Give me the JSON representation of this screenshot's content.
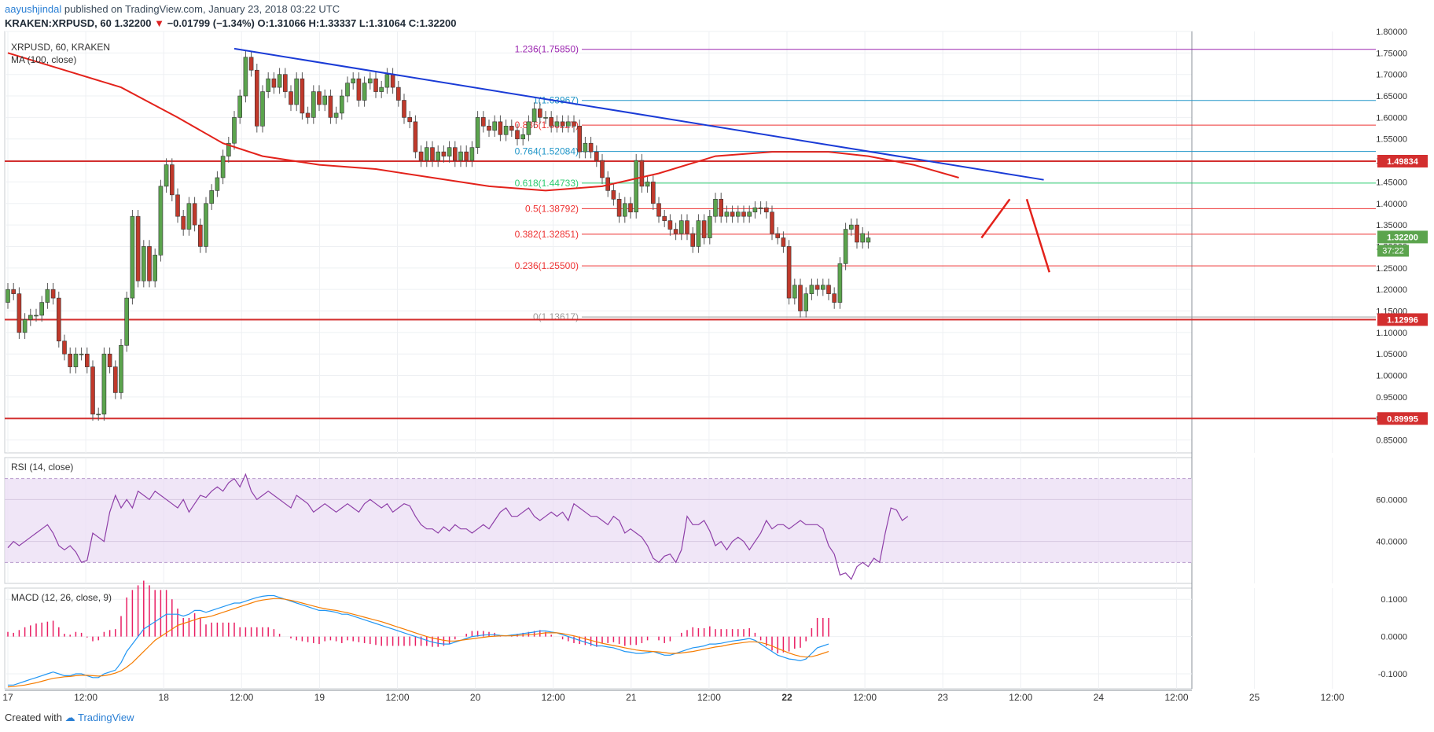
{
  "header": {
    "user": "aayushjindal",
    "published": " published on TradingView.com, January 23, 2018 03:22 UTC",
    "symbol": "KRAKEN:XRPUSD, 60",
    "last": "1.32200",
    "change": "−0.01799 (−1.34%)",
    "ohlc": "O:1.31066  H:1.33337  L:1.31064  C:1.32200"
  },
  "legend": {
    "symbol": "XRPUSD, 60, KRAKEN",
    "ma": "MA (100, close)",
    "rsi": "RSI (14, close)",
    "macd": "MACD (12, 26, close, 9)"
  },
  "footer": {
    "created_with": "Created with",
    "brand": "TradingView"
  },
  "colors": {
    "up": "#5ba44d",
    "down": "#c0392b",
    "ma": "#e3221b",
    "trend": "#1a3bd6",
    "level": "#d32f2f",
    "rsi": "#8e3fa8",
    "rsi_band": "#eadcf4",
    "macd": "#2196f3",
    "signal": "#f57c00",
    "hist": "#e91e63"
  },
  "chart_data": {
    "type": "candlestick",
    "title": "XRPUSD, 60, KRAKEN",
    "ylim": [
      0.82,
      1.8
    ],
    "y_ticks": [
      "1.80000",
      "1.75000",
      "1.70000",
      "1.65000",
      "1.60000",
      "1.55000",
      "1.50000",
      "1.45000",
      "1.40000",
      "1.35000",
      "1.30000",
      "1.25000",
      "1.20000",
      "1.15000",
      "1.10000",
      "1.05000",
      "1.00000",
      "0.95000",
      "0.90000",
      "0.85000"
    ],
    "x_ticks": [
      "17",
      "12:00",
      "18",
      "12:00",
      "19",
      "12:00",
      "20",
      "12:00",
      "21",
      "12:00",
      "22",
      "12:00",
      "23",
      "12:00",
      "24",
      "12:00",
      "25",
      "12:00"
    ],
    "x_tick_bold": [
      false,
      false,
      false,
      false,
      false,
      false,
      false,
      false,
      false,
      false,
      true,
      false,
      false,
      false,
      false,
      false,
      false,
      false
    ],
    "candles": [
      [
        1.17,
        1.2
      ],
      [
        1.2,
        1.19
      ],
      [
        1.19,
        1.1
      ],
      [
        1.1,
        1.13
      ],
      [
        1.13,
        1.14
      ],
      [
        1.14,
        1.14
      ],
      [
        1.14,
        1.17
      ],
      [
        1.17,
        1.2
      ],
      [
        1.2,
        1.18
      ],
      [
        1.18,
        1.08
      ],
      [
        1.08,
        1.05
      ],
      [
        1.05,
        1.02
      ],
      [
        1.02,
        1.05
      ],
      [
        1.05,
        1.05
      ],
      [
        1.05,
        1.02
      ],
      [
        1.02,
        0.91
      ],
      [
        0.91,
        0.91
      ],
      [
        0.91,
        1.05
      ],
      [
        1.05,
        1.02
      ],
      [
        1.02,
        0.96
      ],
      [
        0.96,
        1.07
      ],
      [
        1.07,
        1.18
      ],
      [
        1.18,
        1.37
      ],
      [
        1.37,
        1.22
      ],
      [
        1.22,
        1.3
      ],
      [
        1.3,
        1.22
      ],
      [
        1.22,
        1.28
      ],
      [
        1.28,
        1.44
      ],
      [
        1.44,
        1.49
      ],
      [
        1.49,
        1.42
      ],
      [
        1.42,
        1.37
      ],
      [
        1.37,
        1.34
      ],
      [
        1.34,
        1.4
      ],
      [
        1.4,
        1.35
      ],
      [
        1.35,
        1.3
      ],
      [
        1.3,
        1.4
      ],
      [
        1.4,
        1.43
      ],
      [
        1.43,
        1.46
      ],
      [
        1.46,
        1.51
      ],
      [
        1.51,
        1.54
      ],
      [
        1.54,
        1.6
      ],
      [
        1.6,
        1.65
      ],
      [
        1.65,
        1.74
      ],
      [
        1.74,
        1.71
      ],
      [
        1.71,
        1.58
      ],
      [
        1.58,
        1.66
      ],
      [
        1.66,
        1.69
      ],
      [
        1.69,
        1.67
      ],
      [
        1.67,
        1.7
      ],
      [
        1.7,
        1.66
      ],
      [
        1.66,
        1.63
      ],
      [
        1.63,
        1.69
      ],
      [
        1.69,
        1.61
      ],
      [
        1.61,
        1.6
      ],
      [
        1.6,
        1.66
      ],
      [
        1.66,
        1.63
      ],
      [
        1.63,
        1.65
      ],
      [
        1.65,
        1.6
      ],
      [
        1.6,
        1.61
      ],
      [
        1.61,
        1.65
      ],
      [
        1.65,
        1.68
      ],
      [
        1.68,
        1.69
      ],
      [
        1.69,
        1.64
      ],
      [
        1.64,
        1.68
      ],
      [
        1.68,
        1.69
      ],
      [
        1.69,
        1.66
      ],
      [
        1.66,
        1.67
      ],
      [
        1.67,
        1.7
      ],
      [
        1.7,
        1.67
      ],
      [
        1.67,
        1.64
      ],
      [
        1.64,
        1.6
      ],
      [
        1.6,
        1.59
      ],
      [
        1.59,
        1.52
      ],
      [
        1.52,
        1.5
      ],
      [
        1.5,
        1.53
      ],
      [
        1.53,
        1.5
      ],
      [
        1.5,
        1.52
      ],
      [
        1.52,
        1.51
      ],
      [
        1.51,
        1.53
      ],
      [
        1.53,
        1.5
      ],
      [
        1.5,
        1.52
      ],
      [
        1.52,
        1.5
      ],
      [
        1.5,
        1.53
      ],
      [
        1.53,
        1.6
      ],
      [
        1.6,
        1.58
      ],
      [
        1.58,
        1.57
      ],
      [
        1.57,
        1.59
      ],
      [
        1.59,
        1.56
      ],
      [
        1.56,
        1.58
      ],
      [
        1.58,
        1.57
      ],
      [
        1.57,
        1.55
      ],
      [
        1.55,
        1.56
      ],
      [
        1.56,
        1.59
      ],
      [
        1.59,
        1.62
      ],
      [
        1.62,
        1.6
      ],
      [
        1.6,
        1.6
      ],
      [
        1.6,
        1.58
      ],
      [
        1.58,
        1.59
      ],
      [
        1.59,
        1.58
      ],
      [
        1.58,
        1.59
      ],
      [
        1.59,
        1.58
      ],
      [
        1.58,
        1.52
      ],
      [
        1.52,
        1.54
      ],
      [
        1.54,
        1.52
      ],
      [
        1.52,
        1.5
      ],
      [
        1.5,
        1.46
      ],
      [
        1.46,
        1.43
      ],
      [
        1.43,
        1.41
      ],
      [
        1.41,
        1.37
      ],
      [
        1.37,
        1.4
      ],
      [
        1.4,
        1.38
      ],
      [
        1.38,
        1.5
      ],
      [
        1.5,
        1.44
      ],
      [
        1.44,
        1.45
      ],
      [
        1.45,
        1.4
      ],
      [
        1.4,
        1.37
      ],
      [
        1.37,
        1.36
      ],
      [
        1.36,
        1.34
      ],
      [
        1.34,
        1.33
      ],
      [
        1.33,
        1.36
      ],
      [
        1.36,
        1.33
      ],
      [
        1.33,
        1.3
      ],
      [
        1.3,
        1.36
      ],
      [
        1.36,
        1.32
      ],
      [
        1.32,
        1.37
      ],
      [
        1.37,
        1.41
      ],
      [
        1.41,
        1.37
      ],
      [
        1.37,
        1.38
      ],
      [
        1.38,
        1.37
      ],
      [
        1.37,
        1.38
      ],
      [
        1.38,
        1.37
      ],
      [
        1.37,
        1.38
      ],
      [
        1.38,
        1.39
      ],
      [
        1.39,
        1.39
      ],
      [
        1.39,
        1.38
      ],
      [
        1.38,
        1.33
      ],
      [
        1.33,
        1.32
      ],
      [
        1.32,
        1.3
      ],
      [
        1.3,
        1.18
      ],
      [
        1.18,
        1.21
      ],
      [
        1.21,
        1.15
      ],
      [
        1.15,
        1.19
      ],
      [
        1.19,
        1.21
      ],
      [
        1.21,
        1.2
      ],
      [
        1.2,
        1.21
      ],
      [
        1.21,
        1.19
      ],
      [
        1.19,
        1.17
      ],
      [
        1.17,
        1.26
      ],
      [
        1.26,
        1.34
      ],
      [
        1.34,
        1.35
      ],
      [
        1.35,
        1.31
      ],
      [
        1.31,
        1.33
      ],
      [
        1.31,
        1.32
      ]
    ],
    "moving_average_100": [
      [
        0,
        1.75
      ],
      [
        10,
        1.71
      ],
      [
        20,
        1.67
      ],
      [
        30,
        1.6
      ],
      [
        38,
        1.54
      ],
      [
        45,
        1.51
      ],
      [
        55,
        1.49
      ],
      [
        65,
        1.48
      ],
      [
        75,
        1.46
      ],
      [
        85,
        1.44
      ],
      [
        95,
        1.43
      ],
      [
        105,
        1.44
      ],
      [
        115,
        1.47
      ],
      [
        125,
        1.51
      ],
      [
        135,
        1.52
      ],
      [
        145,
        1.52
      ],
      [
        152,
        1.51
      ],
      [
        160,
        1.49
      ],
      [
        168,
        1.46
      ]
    ],
    "horizontal_levels": [
      "1.49834",
      "1.12996",
      "0.89995"
    ],
    "fibonacci": [
      {
        "ratio": "1.236",
        "price": "1.75850"
      },
      {
        "ratio": "1",
        "price": "1.63967"
      },
      {
        "ratio": "0.886",
        "price": "1.58227"
      },
      {
        "ratio": "0.764",
        "price": "1.52084"
      },
      {
        "ratio": "0.618",
        "price": "1.44733"
      },
      {
        "ratio": "0.5",
        "price": "1.38792"
      },
      {
        "ratio": "0.382",
        "price": "1.32851"
      },
      {
        "ratio": "0.236",
        "price": "1.25500"
      },
      {
        "ratio": "0",
        "price": "1.13617"
      }
    ],
    "trendline": [
      [
        40,
        1.76
      ],
      [
        183,
        1.455
      ]
    ],
    "projection_arrows": [
      [
        [
          172,
          1.32
        ],
        [
          177,
          1.41
        ]
      ],
      [
        [
          180,
          1.41
        ],
        [
          184,
          1.24
        ]
      ]
    ],
    "price_badge": "1.32200",
    "countdown_badge": "37:22",
    "rsi": {
      "ylim": [
        20,
        80
      ],
      "ticks": [
        "60.0000",
        "40.0000"
      ],
      "values": [
        37,
        40,
        38,
        40,
        42,
        44,
        46,
        48,
        44,
        38,
        36,
        38,
        35,
        30,
        31,
        44,
        42,
        40,
        54,
        62,
        56,
        60,
        56,
        64,
        62,
        60,
        64,
        62,
        60,
        58,
        56,
        60,
        54,
        58,
        62,
        61,
        64,
        66,
        64,
        68,
        70,
        66,
        72,
        64,
        60,
        62,
        64,
        62,
        60,
        58,
        56,
        62,
        60,
        58,
        54,
        56,
        58,
        56,
        54,
        56,
        58,
        56,
        54,
        58,
        60,
        58,
        56,
        58,
        54,
        56,
        58,
        57,
        52,
        48,
        46,
        46,
        44,
        47,
        45,
        48,
        46,
        46,
        44,
        46,
        48,
        46,
        50,
        54,
        56,
        52,
        52,
        54,
        56,
        52,
        50,
        52,
        54,
        52,
        54,
        50,
        58,
        56,
        54,
        52,
        52,
        50,
        48,
        52,
        50,
        44,
        46,
        44,
        42,
        38,
        32,
        30,
        33,
        34,
        30,
        36,
        52,
        48,
        48,
        50,
        45,
        38,
        40,
        36,
        40,
        42,
        40,
        36,
        40,
        44,
        50,
        46,
        48,
        48,
        46,
        48,
        50,
        48,
        48,
        48,
        46,
        38,
        34,
        24,
        25,
        22,
        28,
        30,
        28,
        32,
        30,
        44,
        56,
        55,
        50,
        52
      ]
    },
    "macd": {
      "ylim": [
        -0.14,
        0.13
      ],
      "ticks": [
        "0.1000",
        "0.0000",
        "-0.1000"
      ],
      "macd_line": [
        -0.13,
        -0.13,
        -0.125,
        -0.12,
        -0.115,
        -0.11,
        -0.105,
        -0.1,
        -0.095,
        -0.1,
        -0.105,
        -0.105,
        -0.1,
        -0.1,
        -0.105,
        -0.11,
        -0.11,
        -0.1,
        -0.095,
        -0.09,
        -0.07,
        -0.04,
        -0.02,
        0.0,
        0.02,
        0.03,
        0.04,
        0.05,
        0.06,
        0.06,
        0.06,
        0.055,
        0.06,
        0.07,
        0.07,
        0.065,
        0.07,
        0.075,
        0.08,
        0.085,
        0.09,
        0.09,
        0.095,
        0.1,
        0.105,
        0.108,
        0.11,
        0.11,
        0.105,
        0.1,
        0.095,
        0.09,
        0.085,
        0.08,
        0.075,
        0.07,
        0.07,
        0.068,
        0.065,
        0.06,
        0.06,
        0.055,
        0.05,
        0.045,
        0.04,
        0.035,
        0.03,
        0.025,
        0.02,
        0.015,
        0.01,
        0.005,
        0.0,
        -0.005,
        -0.01,
        -0.015,
        -0.018,
        -0.02,
        -0.02,
        -0.015,
        -0.01,
        -0.005,
        0.0,
        0.002,
        0.004,
        0.005,
        0.005,
        0.003,
        0.002,
        0.004,
        0.006,
        0.008,
        0.01,
        0.012,
        0.015,
        0.015,
        0.012,
        0.01,
        0.005,
        0.0,
        -0.005,
        -0.01,
        -0.015,
        -0.02,
        -0.025,
        -0.025,
        -0.028,
        -0.03,
        -0.035,
        -0.04,
        -0.042,
        -0.045,
        -0.045,
        -0.043,
        -0.04,
        -0.045,
        -0.05,
        -0.05,
        -0.045,
        -0.04,
        -0.035,
        -0.03,
        -0.028,
        -0.025,
        -0.02,
        -0.02,
        -0.018,
        -0.015,
        -0.012,
        -0.01,
        -0.008,
        -0.005,
        -0.01,
        -0.02,
        -0.03,
        -0.04,
        -0.05,
        -0.055,
        -0.06,
        -0.062,
        -0.065,
        -0.06,
        -0.045,
        -0.03,
        -0.025,
        -0.02
      ],
      "signal_line": [
        -0.135,
        -0.134,
        -0.132,
        -0.13,
        -0.127,
        -0.124,
        -0.12,
        -0.116,
        -0.112,
        -0.11,
        -0.108,
        -0.107,
        -0.105,
        -0.104,
        -0.104,
        -0.105,
        -0.106,
        -0.105,
        -0.102,
        -0.098,
        -0.092,
        -0.082,
        -0.07,
        -0.055,
        -0.04,
        -0.025,
        -0.01,
        0.0,
        0.01,
        0.02,
        0.03,
        0.035,
        0.04,
        0.045,
        0.05,
        0.052,
        0.055,
        0.06,
        0.065,
        0.07,
        0.075,
        0.08,
        0.085,
        0.09,
        0.095,
        0.098,
        0.1,
        0.102,
        0.102,
        0.1,
        0.097,
        0.094,
        0.09,
        0.086,
        0.082,
        0.078,
        0.075,
        0.072,
        0.07,
        0.067,
        0.064,
        0.06,
        0.056,
        0.052,
        0.048,
        0.044,
        0.04,
        0.035,
        0.03,
        0.025,
        0.02,
        0.015,
        0.01,
        0.005,
        0.0,
        -0.004,
        -0.007,
        -0.01,
        -0.012,
        -0.012,
        -0.01,
        -0.008,
        -0.006,
        -0.004,
        -0.002,
        0.0,
        0.001,
        0.002,
        0.002,
        0.002,
        0.003,
        0.004,
        0.005,
        0.006,
        0.008,
        0.01,
        0.01,
        0.01,
        0.008,
        0.005,
        0.002,
        -0.002,
        -0.006,
        -0.01,
        -0.014,
        -0.018,
        -0.021,
        -0.024,
        -0.027,
        -0.03,
        -0.033,
        -0.036,
        -0.038,
        -0.039,
        -0.04,
        -0.041,
        -0.043,
        -0.045,
        -0.045,
        -0.044,
        -0.042,
        -0.04,
        -0.037,
        -0.034,
        -0.031,
        -0.028,
        -0.026,
        -0.023,
        -0.02,
        -0.018,
        -0.016,
        -0.014,
        -0.014,
        -0.016,
        -0.02,
        -0.025,
        -0.032,
        -0.038,
        -0.044,
        -0.049,
        -0.053,
        -0.055,
        -0.054,
        -0.05,
        -0.045,
        -0.04
      ]
    }
  }
}
